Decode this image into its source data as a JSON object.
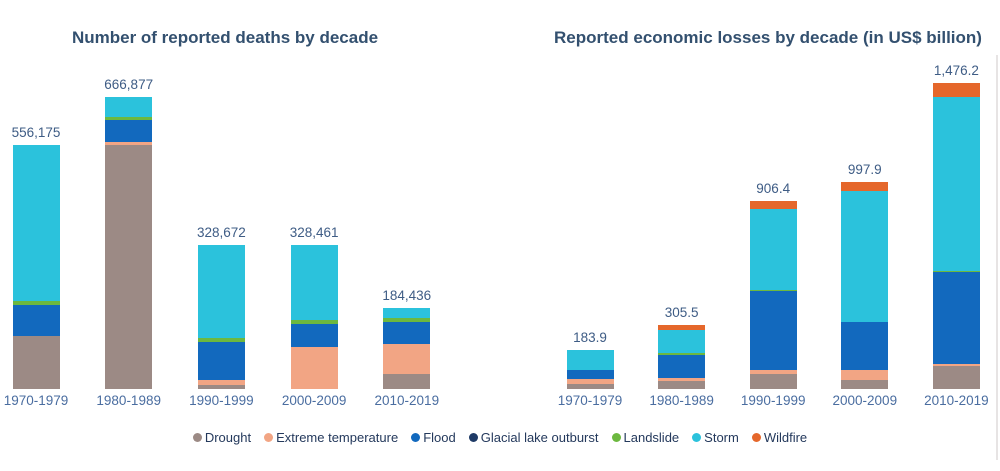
{
  "text_colors": {
    "title": "#33506F",
    "total_label": "#3E5C85",
    "category_label": "#4A6DA0",
    "legend_label": "#24395C"
  },
  "legend": {
    "items": [
      {
        "label": "Drought",
        "color": "#9C8A85"
      },
      {
        "label": "Extreme temperature",
        "color": "#F2A584"
      },
      {
        "label": "Flood",
        "color": "#1269BE"
      },
      {
        "label": "Glacial lake outburst",
        "color": "#1E3A66"
      },
      {
        "label": "Landslide",
        "color": "#6CB83F"
      },
      {
        "label": "Storm",
        "color": "#2BC2DC"
      },
      {
        "label": "Wildfire",
        "color": "#E5672B"
      }
    ]
  },
  "chart_data": [
    {
      "type": "bar",
      "stacked": true,
      "title": "Number of reported deaths by decade",
      "unit": "deaths",
      "categories": [
        "1970-1979",
        "1980-1989",
        "1990-1999",
        "2000-2009",
        "2010-2019"
      ],
      "series": [
        {
          "name": "Drought",
          "color": "#9C8A85",
          "values": [
            120000,
            558000,
            7600,
            0,
            32200
          ]
        },
        {
          "name": "Extreme temperature",
          "color": "#F2A584",
          "values": [
            0,
            6200,
            11200,
            95000,
            70700
          ]
        },
        {
          "name": "Flood",
          "color": "#1269BE",
          "values": [
            71600,
            50300,
            87500,
            52500,
            48500
          ]
        },
        {
          "name": "Glacial lake outburst",
          "color": "#1E3A66",
          "values": [
            0,
            0,
            0,
            0,
            0
          ]
        },
        {
          "name": "Landslide",
          "color": "#6CB83F",
          "values": [
            8500,
            7500,
            9900,
            9200,
            9300
          ]
        },
        {
          "name": "Storm",
          "color": "#2BC2DC",
          "values": [
            356075,
            44877,
            212472,
            171761,
            23736
          ]
        },
        {
          "name": "Wildfire",
          "color": "#E5672B",
          "values": [
            0,
            0,
            0,
            0,
            0
          ]
        }
      ],
      "totals": [
        556175,
        666877,
        328672,
        328461,
        184436
      ],
      "total_labels": [
        "556,175",
        "666,877",
        "328,672",
        "328,461",
        "184,436"
      ],
      "value_axis_visible": false,
      "gridlines": false,
      "legend_position": "bottom-shared"
    },
    {
      "type": "bar",
      "stacked": true,
      "title": "Reported economic losses by decade (in US$ billion)",
      "unit": "US$ billion",
      "categories": [
        "1970-1979",
        "1980-1989",
        "1990-1999",
        "2000-2009",
        "2010-2019"
      ],
      "series": [
        {
          "name": "Drought",
          "color": "#9C8A85",
          "values": [
            24.0,
            34.0,
            67.9,
            43.4,
            107.6
          ]
        },
        {
          "name": "Extreme temperature",
          "color": "#F2A584",
          "values": [
            20.6,
            17.0,
            21.0,
            48.0,
            10.0
          ]
        },
        {
          "name": "Flood",
          "color": "#1269BE",
          "values": [
            43.2,
            112.5,
            381.5,
            231.5,
            443.0
          ]
        },
        {
          "name": "Glacial lake outburst",
          "color": "#1E3A66",
          "values": [
            0,
            0,
            0,
            0,
            0
          ]
        },
        {
          "name": "Landslide",
          "color": "#6CB83F",
          "values": [
            0,
            8.0,
            6.0,
            0,
            6.0
          ]
        },
        {
          "name": "Storm",
          "color": "#2BC2DC",
          "values": [
            96.1,
            113.5,
            393.0,
            632.0,
            842.0
          ]
        },
        {
          "name": "Wildfire",
          "color": "#E5672B",
          "values": [
            0,
            20.5,
            37.0,
            43.0,
            67.6
          ]
        }
      ],
      "totals": [
        183.9,
        305.5,
        906.4,
        997.9,
        1476.2
      ],
      "total_labels": [
        "183.9",
        "305.5",
        "906.4",
        "997.9",
        "1,476.2"
      ],
      "value_axis_visible": false,
      "gridlines": false,
      "legend_position": "bottom-shared"
    }
  ]
}
